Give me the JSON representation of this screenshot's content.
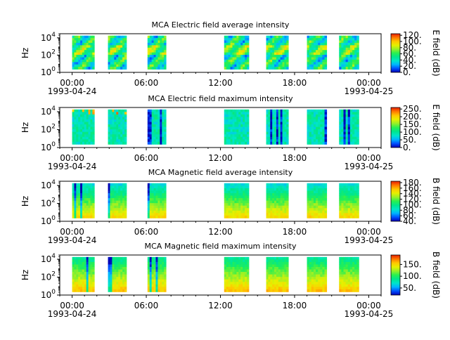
{
  "x_axis": {
    "tick_labels": [
      "00:00",
      "06:00",
      "12:00",
      "18:00",
      "00:00"
    ],
    "tick_hours": [
      0,
      6,
      12,
      18,
      24
    ],
    "minor_step_hours": 1,
    "range_hours": [
      -1,
      25
    ],
    "start_date": "1993-04-24",
    "end_date": "1993-04-25"
  },
  "y_axis": {
    "label": "Hz",
    "scale": "log",
    "range": [
      1,
      30000
    ],
    "tick_labels": [
      {
        "base": "10",
        "exp": "0",
        "value": 1
      },
      {
        "base": "10",
        "exp": "2",
        "value": 100
      },
      {
        "base": "10",
        "exp": "4",
        "value": 10000
      }
    ]
  },
  "colormap": [
    "#0000b4",
    "#0050ff",
    "#00b4ff",
    "#00e6c8",
    "#00e68c",
    "#28f050",
    "#96f028",
    "#e6f000",
    "#ffc800",
    "#ff7800",
    "#e61e00"
  ],
  "chart_data": [
    {
      "type": "heatmap",
      "title": "MCA  Electric field average intensity",
      "ylabel": "Hz",
      "colorbar": {
        "label": "E field (dB)",
        "range": [
          0,
          125
        ],
        "ticks": [
          0,
          20,
          40,
          60,
          80,
          100,
          120
        ],
        "tick_labels": [
          "0.",
          "20.",
          "40.",
          "60.",
          "80.",
          "100.",
          "120."
        ]
      },
      "segments": [
        [
          0.0,
          1.8
        ],
        [
          2.9,
          4.4
        ],
        [
          6.1,
          7.6
        ],
        [
          12.3,
          14.3
        ],
        [
          15.7,
          17.5
        ],
        [
          19.0,
          20.6
        ],
        [
          21.6,
          23.2
        ]
      ],
      "base_level": 55,
      "spike_level": 85
    },
    {
      "type": "heatmap",
      "title": "MCA  Electric field maximum intensity",
      "ylabel": "Hz",
      "colorbar": {
        "label": "E field (dB)",
        "range": [
          0,
          260
        ],
        "ticks": [
          0,
          50,
          100,
          150,
          200,
          250
        ],
        "tick_labels": [
          "0.",
          "50.",
          "100.",
          "150.",
          "200.",
          "250."
        ]
      },
      "segments": [
        [
          0.0,
          1.8
        ],
        [
          2.9,
          4.4
        ],
        [
          6.1,
          7.6
        ],
        [
          12.3,
          14.3
        ],
        [
          15.7,
          17.5
        ],
        [
          19.0,
          20.6
        ],
        [
          21.6,
          23.2
        ]
      ],
      "base_level": 100,
      "spike_level": 30
    },
    {
      "type": "heatmap",
      "title": "MCA  Magnetic field average intensity",
      "ylabel": "Hz",
      "colorbar": {
        "label": "B field (dB)",
        "range": [
          40,
          185
        ],
        "ticks": [
          40,
          60,
          80,
          100,
          120,
          140,
          160,
          180
        ],
        "tick_labels": [
          "40.",
          "60.",
          "80.",
          "100.",
          "120.",
          "140.",
          "160.",
          "180."
        ]
      },
      "segments": [
        [
          0.0,
          1.8
        ],
        [
          2.9,
          4.4
        ],
        [
          6.1,
          7.6
        ],
        [
          12.3,
          14.3
        ],
        [
          15.7,
          17.5
        ],
        [
          19.0,
          20.6
        ],
        [
          21.6,
          23.2
        ]
      ],
      "base_level": 110,
      "spike_level": 60
    },
    {
      "type": "heatmap",
      "title": "MCA  Magnetic field maximum intensity",
      "ylabel": "Hz",
      "colorbar": {
        "label": "B field (dB)",
        "range": [
          20,
          190
        ],
        "ticks": [
          50,
          100,
          150
        ],
        "tick_labels": [
          "50.",
          "100.",
          "150."
        ]
      },
      "segments": [
        [
          0.0,
          1.8
        ],
        [
          2.9,
          4.4
        ],
        [
          6.1,
          7.6
        ],
        [
          12.3,
          14.3
        ],
        [
          15.7,
          17.5
        ],
        [
          19.0,
          20.6
        ],
        [
          21.6,
          23.2
        ]
      ],
      "base_level": 115,
      "spike_level": 40
    }
  ]
}
